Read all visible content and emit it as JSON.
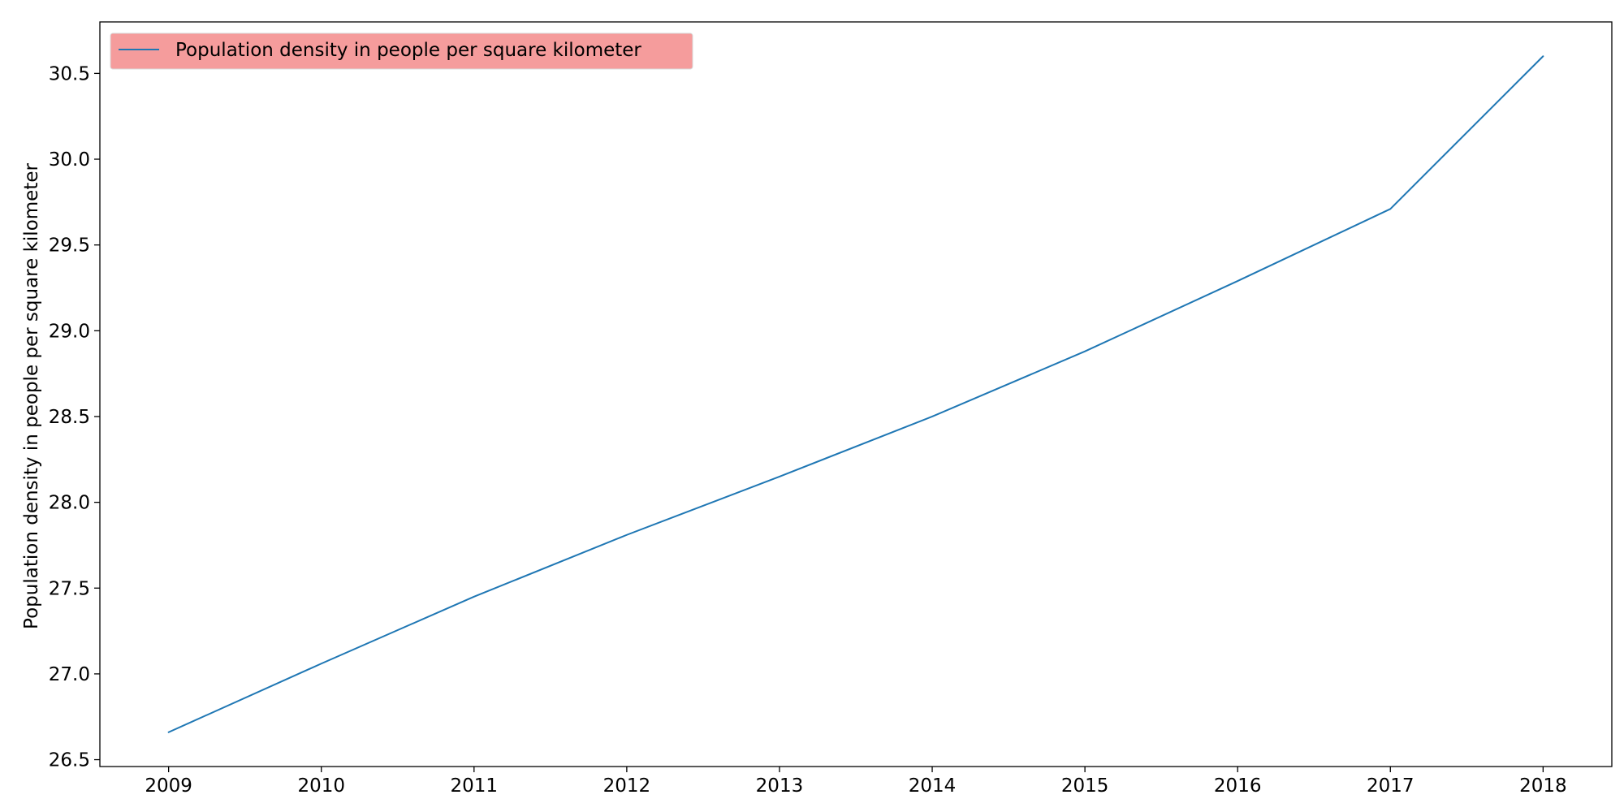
{
  "chart_data": {
    "type": "line",
    "title": "",
    "xlabel": "",
    "ylabel": "Population density in people per square kilometer",
    "x": [
      2009,
      2010,
      2011,
      2012,
      2013,
      2014,
      2015,
      2016,
      2017,
      2018
    ],
    "x_ticks": [
      "2009",
      "2010",
      "2011",
      "2012",
      "2013",
      "2014",
      "2015",
      "2016",
      "2017",
      "2018"
    ],
    "xlim": [
      2008.55,
      2018.45
    ],
    "ylim": [
      26.46,
      30.8
    ],
    "y_ticks": [
      "26.5",
      "27.0",
      "27.5",
      "28.0",
      "28.5",
      "29.0",
      "29.5",
      "30.0",
      "30.5"
    ],
    "grid": false,
    "legend_position": "top-left",
    "series": [
      {
        "name": "Population density in people per square kilometer",
        "color": "#1f77b4",
        "values": [
          26.66,
          27.06,
          27.45,
          27.81,
          28.15,
          28.5,
          28.88,
          29.29,
          29.71,
          30.6
        ]
      }
    ],
    "legend_background": "#f59c9c"
  }
}
